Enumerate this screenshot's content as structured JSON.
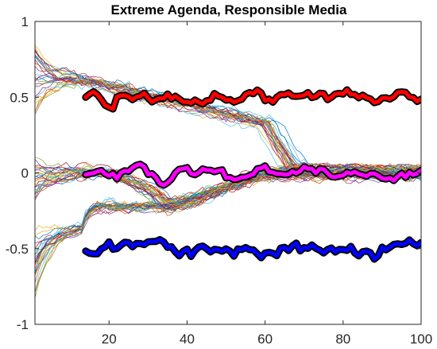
{
  "chart_data": {
    "type": "line",
    "title": "Extreme Agenda, Responsible Media",
    "xlabel": "",
    "ylabel": "",
    "xlim": [
      1,
      100
    ],
    "ylim": [
      -1,
      1
    ],
    "x_ticks": [
      20,
      40,
      60,
      80,
      100
    ],
    "y_ticks": [
      -1,
      -0.5,
      0,
      0.5,
      1
    ],
    "x_tick_labels": [
      "20",
      "40",
      "60",
      "80",
      "100"
    ],
    "y_tick_labels": [
      "-1",
      "-0.5",
      "0",
      "0.5",
      "1"
    ],
    "grid": false,
    "legend": "none",
    "agent_trajectories": {
      "count": 80,
      "x_range": [
        1,
        100
      ],
      "upper_group": {
        "start_y_range": [
          0.3,
          0.95
        ],
        "plateau_y": 0.62,
        "transition_x": 65,
        "end_y": 0.02
      },
      "middle_group": {
        "start_y_range": [
          -0.25,
          0.2
        ],
        "plateau_y": 0.0,
        "transition_x": 33,
        "end_y": -0.22
      },
      "lower_group": {
        "start_y_range": [
          -0.95,
          -0.35
        ],
        "plateau_y": -0.22,
        "end_y": -0.01
      },
      "line_width": "thin",
      "colors": "multicolor"
    },
    "series": [
      {
        "color": "#ff0000",
        "x_range": [
          14,
          100
        ],
        "mean": 0.5,
        "noise": 0.02
      },
      {
        "color": "#ff00ff",
        "x_range": [
          14,
          100
        ],
        "mean": 0.0,
        "noise": 0.02
      },
      {
        "color": "#0000ff",
        "x_range": [
          14,
          100
        ],
        "mean": -0.5,
        "noise": 0.02
      }
    ],
    "bold_line_outline_color": "#000000"
  }
}
